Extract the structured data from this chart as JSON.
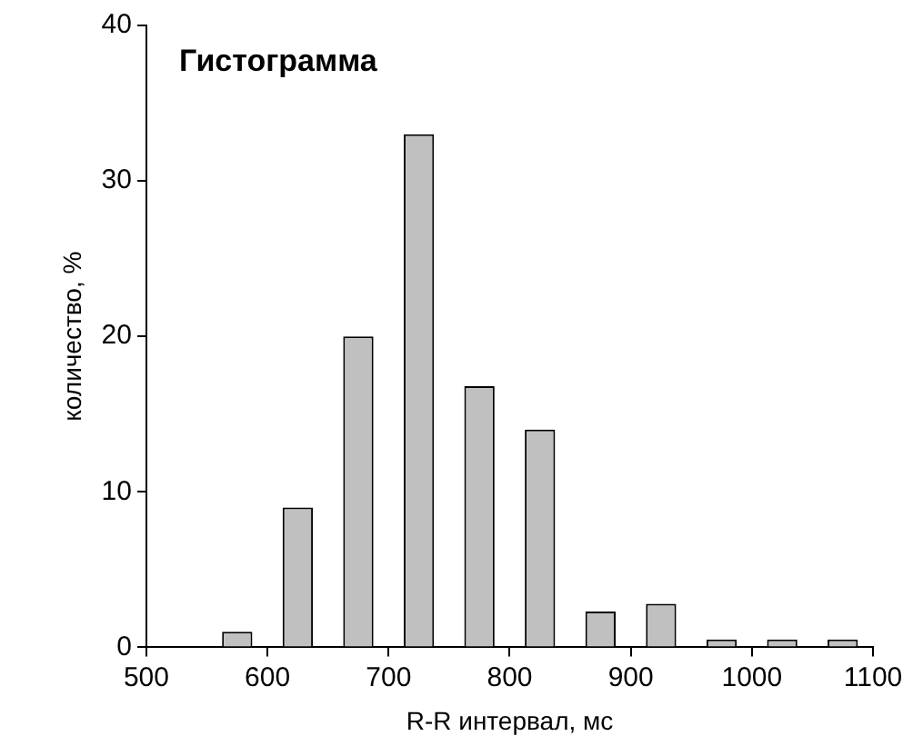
{
  "chart_data": {
    "type": "bar",
    "title": "Гистограмма",
    "xlabel": "R-R интервал, мс",
    "ylabel": "количество, %",
    "x": [
      575,
      625,
      675,
      725,
      775,
      825,
      875,
      925,
      975,
      1025,
      1075
    ],
    "values": [
      1,
      9,
      20,
      33,
      16.8,
      14,
      2.3,
      2.8,
      0.5,
      0.5,
      0.5
    ],
    "color": "#c0c0c0",
    "xlim": [
      500,
      1100
    ],
    "xticks": [
      500,
      600,
      700,
      800,
      900,
      1000,
      1100
    ],
    "ylim": [
      0,
      40
    ],
    "yticks": [
      0,
      10,
      20,
      30,
      40
    ],
    "grid": false,
    "legend": false
  }
}
